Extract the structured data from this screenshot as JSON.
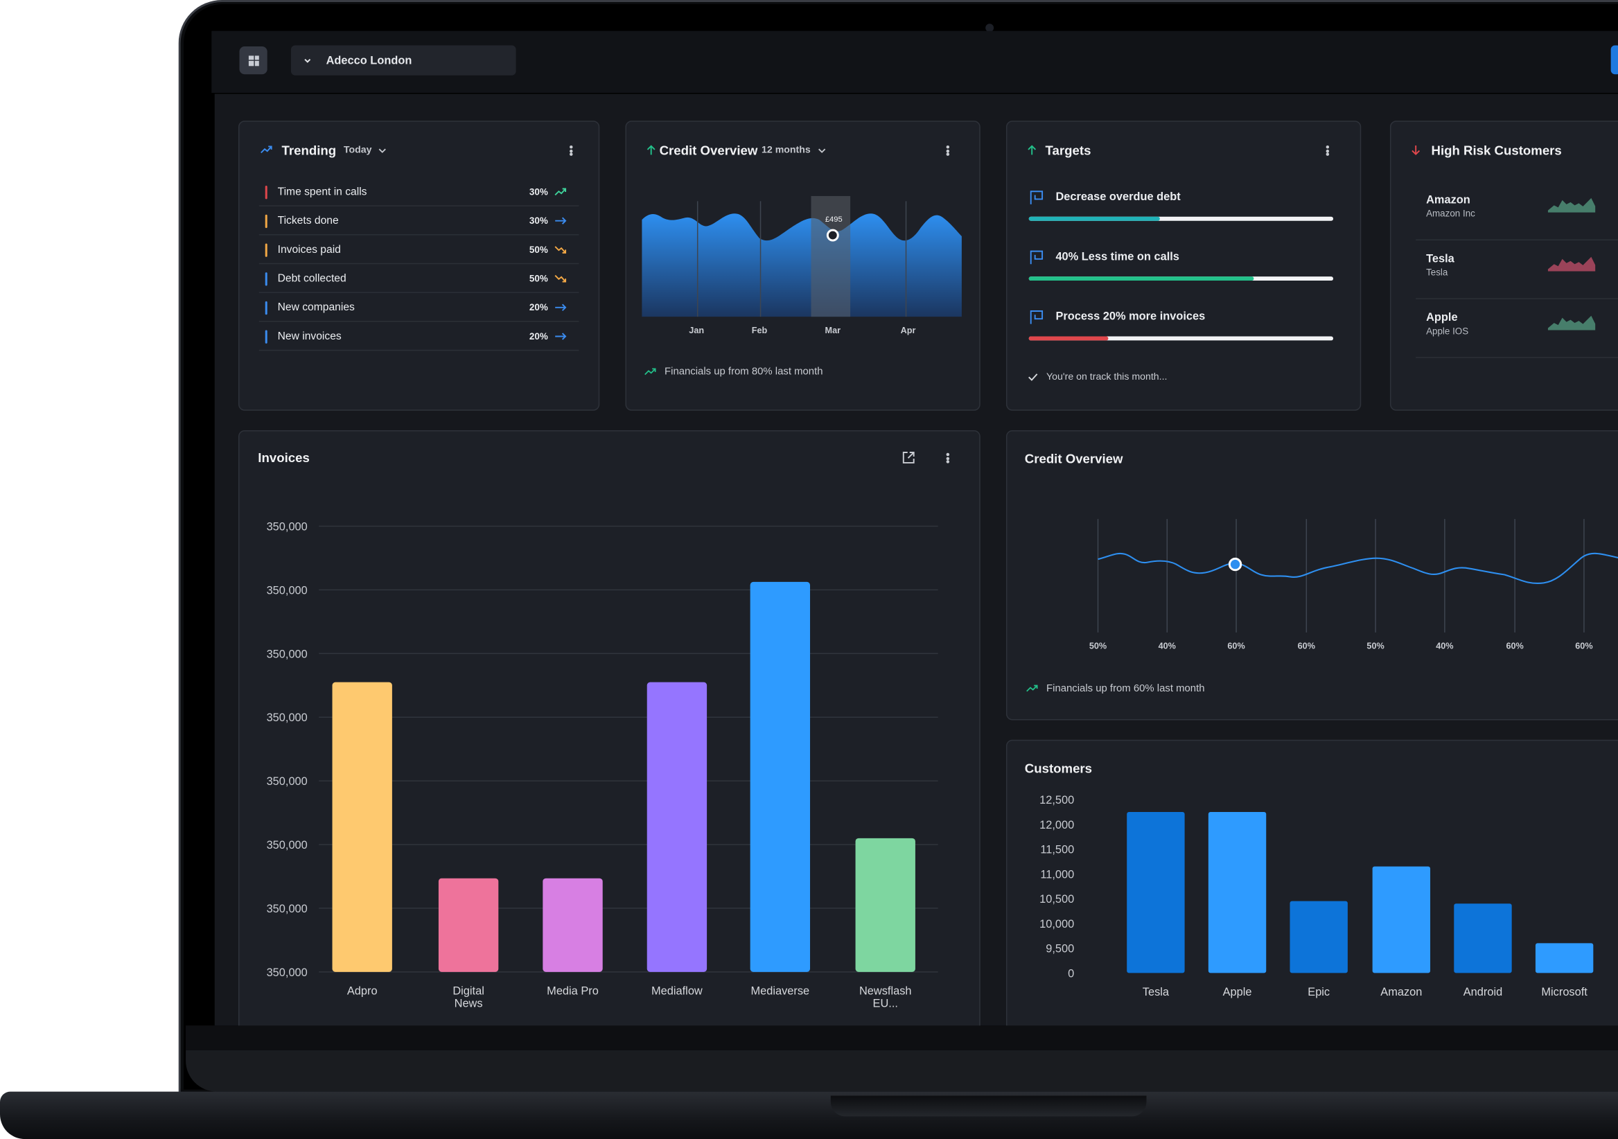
{
  "header": {
    "org_name": "Adecco London"
  },
  "trending": {
    "title": "Trending",
    "period": "Today",
    "items": [
      {
        "label": "Time spent in calls",
        "pct": "30%",
        "color": "#e0474c",
        "dir": "up",
        "icon_color": "#3fd29b"
      },
      {
        "label": "Tickets done",
        "pct": "30%",
        "color": "#f3a845",
        "dir": "flat",
        "icon_color": "#3b8cf0"
      },
      {
        "label": "Invoices paid",
        "pct": "50%",
        "color": "#f3a845",
        "dir": "down",
        "icon_color": "#f3a845"
      },
      {
        "label": "Debt collected",
        "pct": "50%",
        "color": "#3b8cf0",
        "dir": "down",
        "icon_color": "#f3a845"
      },
      {
        "label": "New companies",
        "pct": "20%",
        "color": "#3b8cf0",
        "dir": "flat",
        "icon_color": "#3b8cf0"
      },
      {
        "label": "New invoices",
        "pct": "20%",
        "color": "#3b8cf0",
        "dir": "flat",
        "icon_color": "#3b8cf0"
      }
    ]
  },
  "credit_overview_small": {
    "title": "Credit Overview",
    "period": "12 months",
    "months": [
      "Jan",
      "Feb",
      "Mar",
      "Apr"
    ],
    "tooltip": "£495",
    "footer": "Financials up from 80% last month"
  },
  "targets": {
    "title": "Targets",
    "items": [
      {
        "label": "Decrease overdue debt",
        "progress": 0.43,
        "color": "#21b3b8"
      },
      {
        "label": "40% Less time on calls",
        "progress": 0.74,
        "color": "#23c08a"
      },
      {
        "label": "Process 20% more invoices",
        "progress": 0.26,
        "color": "#e0474c"
      }
    ],
    "footer": "You're on track this month..."
  },
  "high_risk": {
    "title": "High Risk Customers",
    "customers": [
      {
        "name": "Amazon",
        "sub": "Amazon Inc",
        "color": "#4f8f78"
      },
      {
        "name": "Tesla",
        "sub": "Tesla",
        "color": "#b24a63"
      },
      {
        "name": "Apple",
        "sub": "Apple IOS",
        "color": "#4f8f78"
      }
    ]
  },
  "invoices": {
    "title": "Invoices"
  },
  "credit_overview_large": {
    "title": "Credit Overview",
    "x_labels": [
      "50%",
      "40%",
      "60%",
      "60%",
      "50%",
      "40%",
      "60%",
      "60%"
    ],
    "footer": "Financials up from 60% last month"
  },
  "customers": {
    "title": "Customers"
  },
  "chart_data": [
    {
      "type": "bar",
      "title": "Invoices",
      "categories": [
        "Adpro",
        "Digital News",
        "Media Pro",
        "Mediaflow",
        "Mediaverse",
        "Newsflash EU..."
      ],
      "category_lines": [
        [
          "Adpro"
        ],
        [
          "Digital",
          "News"
        ],
        [
          "Media Pro"
        ],
        [
          "Mediaflow"
        ],
        [
          "Mediaverse"
        ],
        [
          "Newsflash",
          "EU..."
        ]
      ],
      "values": [
        0.65,
        0.21,
        0.21,
        0.65,
        0.875,
        0.3
      ],
      "y_ticks": [
        "350,000",
        "350,000",
        "350,000",
        "350,000",
        "350,000",
        "350,000",
        "350,000",
        "350,000"
      ],
      "colors": [
        "#fec96f",
        "#ee739b",
        "#d77fe3",
        "#9575ff",
        "#2e9bff",
        "#7ed6a0"
      ],
      "ylim": [
        0,
        1
      ],
      "grid": true
    },
    {
      "type": "bar",
      "title": "Customers",
      "categories": [
        "Tesla",
        "Apple",
        "Epic",
        "Amazon",
        "Android",
        "Microsoft"
      ],
      "values": [
        12250,
        12250,
        10450,
        11150,
        10400,
        9600
      ],
      "y_ticks": [
        "12,500",
        "12,000",
        "11,500",
        "11,000",
        "10,500",
        "10,000",
        "9,500",
        "0"
      ],
      "colors": [
        "#0d74d9",
        "#2e9bff",
        "#0d74d9",
        "#2e9bff",
        "#0d74d9",
        "#2e9bff"
      ],
      "grid": false
    }
  ]
}
